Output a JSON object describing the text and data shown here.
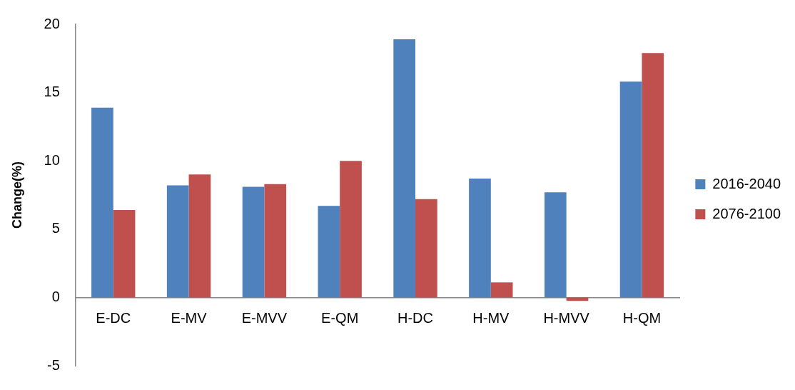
{
  "chart_data": {
    "type": "bar",
    "ylabel": "Change(%)",
    "categories": [
      "E-DC",
      "E-MV",
      "E-MVV",
      "E-QM",
      "H-DC",
      "H-MV",
      "H-MVV",
      "H-QM"
    ],
    "series": [
      {
        "name": "2016-2040",
        "color": "#4f81bd",
        "values": [
          13.9,
          8.2,
          8.1,
          6.7,
          18.9,
          8.7,
          7.7,
          15.8
        ]
      },
      {
        "name": "2076-2100",
        "color": "#c0504d",
        "values": [
          6.4,
          9.0,
          8.3,
          10.0,
          7.2,
          1.1,
          -0.25,
          17.9
        ]
      }
    ],
    "ylim": [
      -5,
      20
    ],
    "yticks": [
      -5,
      0,
      5,
      10,
      15,
      20
    ],
    "grid": false,
    "legend": "right"
  }
}
